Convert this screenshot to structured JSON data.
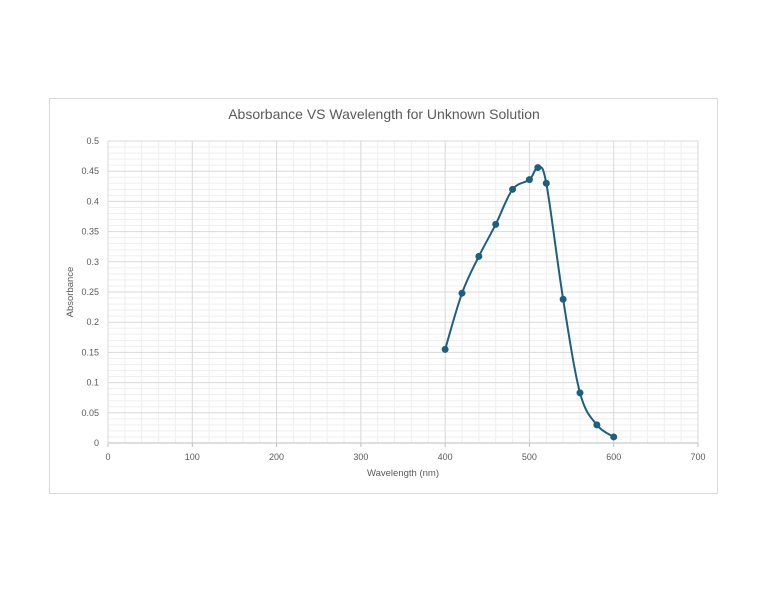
{
  "chart_data": {
    "type": "scatter",
    "title": "Absorbance VS Wavelength for Unknown Solution",
    "xlabel": "Wavelength (nm)",
    "ylabel": "Absorbance",
    "xlim": [
      0,
      700
    ],
    "ylim": [
      0,
      0.5
    ],
    "x_ticks": [
      "0",
      "100",
      "200",
      "300",
      "400",
      "500",
      "600",
      "700"
    ],
    "y_ticks": [
      "0",
      "0.05",
      "0.1",
      "0.15",
      "0.2",
      "0.25",
      "0.3",
      "0.35",
      "0.4",
      "0.45",
      "0.5"
    ],
    "grid": true,
    "legend": "none",
    "line_style": "smooth",
    "series": [
      {
        "color": "#1f5f7f",
        "x": [
          400,
          420,
          440,
          460,
          480,
          500,
          510,
          520,
          540,
          560,
          580,
          600
        ],
        "y": [
          0.155,
          0.248,
          0.309,
          0.362,
          0.42,
          0.436,
          0.456,
          0.43,
          0.238,
          0.083,
          0.03,
          0.01
        ]
      }
    ]
  }
}
